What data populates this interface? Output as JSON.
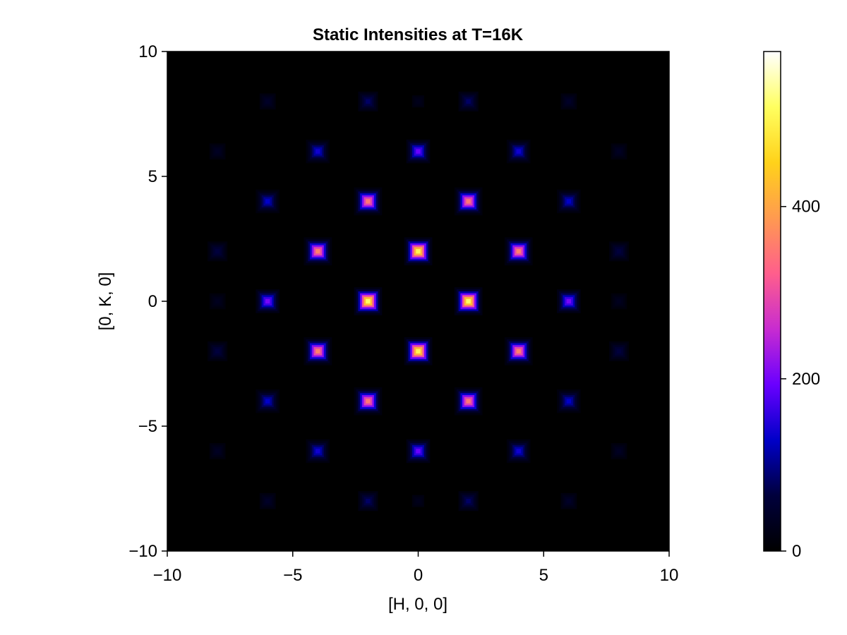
{
  "chart_data": {
    "type": "heatmap",
    "title": "Static Intensities at T=16K",
    "xlabel": "[H, 0, 0]",
    "ylabel": "[0, K, 0]",
    "xlim": [
      -10,
      10
    ],
    "ylim": [
      -10,
      10
    ],
    "x_ticks": [
      -10,
      -5,
      0,
      5,
      10
    ],
    "y_ticks": [
      -10,
      -5,
      0,
      5,
      10
    ],
    "x_tick_labels": [
      "−10",
      "−5",
      "0",
      "5",
      "10"
    ],
    "y_tick_labels": [
      "−10",
      "−5",
      "0",
      "5",
      "10"
    ],
    "grid": false,
    "colorbar": {
      "range": [
        0,
        580
      ],
      "ticks": [
        0,
        200,
        400
      ],
      "tick_labels": [
        "0",
        "200",
        "400"
      ],
      "colormap": "gnuplot2",
      "stops": [
        "#000000",
        "#00003c",
        "#0000c8",
        "#6a00ff",
        "#c82cd0",
        "#ff5e8c",
        "#ff9a50",
        "#ffd21a",
        "#ffff60",
        "#ffffff"
      ]
    },
    "peak_width": 0.22,
    "peaks": [
      {
        "h": -2,
        "k": 0,
        "intensity": 560
      },
      {
        "h": 2,
        "k": 0,
        "intensity": 560
      },
      {
        "h": 0,
        "k": 2,
        "intensity": 545
      },
      {
        "h": 0,
        "k": -2,
        "intensity": 545
      },
      {
        "h": -2,
        "k": 4,
        "intensity": 380
      },
      {
        "h": 2,
        "k": 4,
        "intensity": 380
      },
      {
        "h": -2,
        "k": -4,
        "intensity": 380
      },
      {
        "h": 2,
        "k": -4,
        "intensity": 380
      },
      {
        "h": -4,
        "k": 2,
        "intensity": 390
      },
      {
        "h": 4,
        "k": 2,
        "intensity": 390
      },
      {
        "h": -4,
        "k": -2,
        "intensity": 390
      },
      {
        "h": 4,
        "k": -2,
        "intensity": 390
      },
      {
        "h": -6,
        "k": 0,
        "intensity": 220
      },
      {
        "h": 6,
        "k": 0,
        "intensity": 220
      },
      {
        "h": 0,
        "k": 6,
        "intensity": 210
      },
      {
        "h": 0,
        "k": -6,
        "intensity": 210
      },
      {
        "h": -4,
        "k": 6,
        "intensity": 150
      },
      {
        "h": 4,
        "k": 6,
        "intensity": 150
      },
      {
        "h": -4,
        "k": -6,
        "intensity": 150
      },
      {
        "h": 4,
        "k": -6,
        "intensity": 150
      },
      {
        "h": -6,
        "k": 4,
        "intensity": 140
      },
      {
        "h": 6,
        "k": 4,
        "intensity": 140
      },
      {
        "h": -6,
        "k": -4,
        "intensity": 140
      },
      {
        "h": 6,
        "k": -4,
        "intensity": 140
      },
      {
        "h": -2,
        "k": 8,
        "intensity": 90
      },
      {
        "h": 2,
        "k": 8,
        "intensity": 90
      },
      {
        "h": -2,
        "k": -8,
        "intensity": 90
      },
      {
        "h": 2,
        "k": -8,
        "intensity": 90
      },
      {
        "h": -8,
        "k": 2,
        "intensity": 70
      },
      {
        "h": 8,
        "k": 2,
        "intensity": 70
      },
      {
        "h": -8,
        "k": -2,
        "intensity": 70
      },
      {
        "h": 8,
        "k": -2,
        "intensity": 70
      },
      {
        "h": -6,
        "k": 8,
        "intensity": 45
      },
      {
        "h": 6,
        "k": 8,
        "intensity": 45
      },
      {
        "h": -6,
        "k": -8,
        "intensity": 45
      },
      {
        "h": 6,
        "k": -8,
        "intensity": 45
      },
      {
        "h": -8,
        "k": 6,
        "intensity": 40
      },
      {
        "h": 8,
        "k": 6,
        "intensity": 40
      },
      {
        "h": -8,
        "k": -6,
        "intensity": 40
      },
      {
        "h": 8,
        "k": -6,
        "intensity": 40
      },
      {
        "h": -8,
        "k": 0,
        "intensity": 35
      },
      {
        "h": 8,
        "k": 0,
        "intensity": 35
      },
      {
        "h": 0,
        "k": 8,
        "intensity": 30
      },
      {
        "h": 0,
        "k": -8,
        "intensity": 30
      }
    ]
  }
}
